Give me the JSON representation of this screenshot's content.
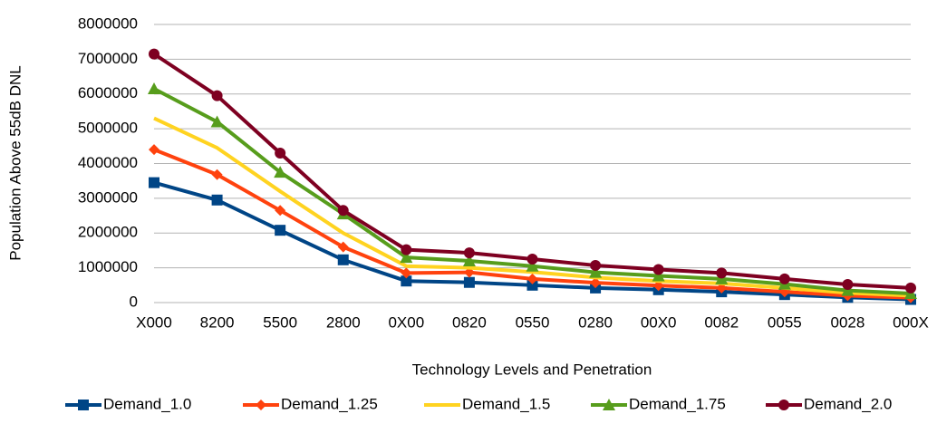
{
  "chart_data": {
    "type": "line",
    "x_label": "Technology Levels and Penetration",
    "y_label": "Population Above 55dB DNL",
    "categories": [
      "X000",
      "8200",
      "5500",
      "2800",
      "0X00",
      "0820",
      "0550",
      "0280",
      "00X0",
      "0082",
      "0055",
      "0028",
      "000X"
    ],
    "series": [
      {
        "name": "Demand_1.0",
        "color": "#004586",
        "marker": "square",
        "values": [
          3450000,
          2950000,
          2080000,
          1230000,
          620000,
          580000,
          500000,
          420000,
          370000,
          310000,
          230000,
          150000,
          90000
        ]
      },
      {
        "name": "Demand_1.25",
        "color": "#ff420e",
        "marker": "diamond",
        "values": [
          4400000,
          3680000,
          2650000,
          1600000,
          850000,
          870000,
          680000,
          570000,
          490000,
          420000,
          310000,
          200000,
          140000
        ]
      },
      {
        "name": "Demand_1.5",
        "color": "#ffd320",
        "marker": "none",
        "values": [
          5300000,
          4450000,
          3200000,
          2000000,
          1050000,
          1000000,
          880000,
          720000,
          620000,
          550000,
          420000,
          280000,
          200000
        ]
      },
      {
        "name": "Demand_1.75",
        "color": "#579d1c",
        "marker": "triangle",
        "values": [
          6150000,
          5200000,
          3750000,
          2550000,
          1300000,
          1200000,
          1050000,
          870000,
          770000,
          680000,
          530000,
          350000,
          260000
        ]
      },
      {
        "name": "Demand_2.0",
        "color": "#7e0021",
        "marker": "circle",
        "values": [
          7150000,
          5950000,
          4300000,
          2650000,
          1520000,
          1430000,
          1250000,
          1070000,
          950000,
          850000,
          680000,
          520000,
          420000
        ]
      }
    ],
    "ylim": [
      0,
      8000000
    ],
    "yticks": [
      0,
      1000000,
      2000000,
      3000000,
      4000000,
      5000000,
      6000000,
      7000000,
      8000000
    ],
    "grid": true,
    "legend": "bottom"
  }
}
